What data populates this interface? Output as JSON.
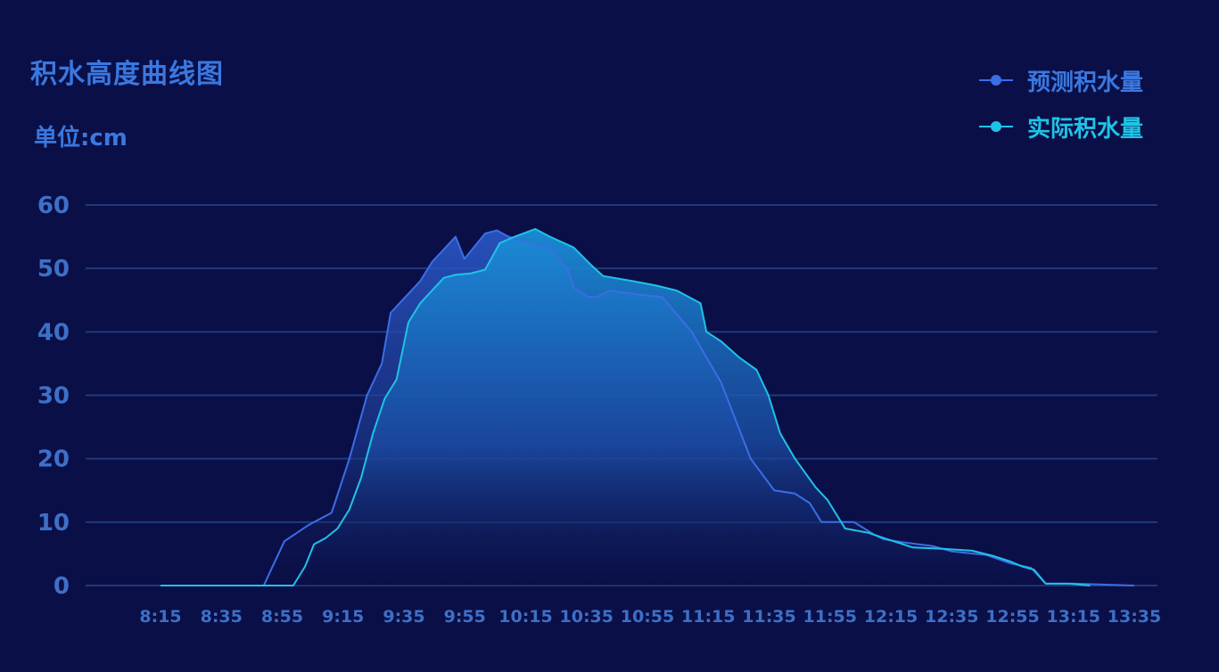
{
  "chart_data": {
    "type": "area",
    "title": "积水高度曲线图",
    "unit_label": "单位:cm",
    "categories": [
      "8:15",
      "8:35",
      "8:55",
      "9:15",
      "9:35",
      "9:55",
      "10:15",
      "10:35",
      "10:55",
      "11:15",
      "11:35",
      "11:55",
      "12:15",
      "12:35",
      "12:55",
      "13:15",
      "13:35"
    ],
    "ylim": [
      0,
      60
    ],
    "yticks": [
      0,
      10,
      20,
      30,
      40,
      50,
      60
    ],
    "xlim": [
      0,
      330
    ],
    "grid": true,
    "legend_position": "top-right",
    "series": [
      {
        "name": "预测积水量",
        "color": "#3a6ee6",
        "points": [
          [
            0,
            0
          ],
          [
            20,
            0
          ],
          [
            35,
            0
          ],
          [
            38,
            3
          ],
          [
            42,
            7
          ],
          [
            50,
            9.5
          ],
          [
            58,
            11.5
          ],
          [
            64,
            20
          ],
          [
            70,
            30
          ],
          [
            75,
            35
          ],
          [
            78,
            43
          ],
          [
            82,
            45
          ],
          [
            88,
            48
          ],
          [
            92,
            51
          ],
          [
            100,
            55
          ],
          [
            103,
            51.5
          ],
          [
            110,
            55.5
          ],
          [
            114,
            56
          ],
          [
            118,
            55
          ],
          [
            125,
            54
          ],
          [
            133,
            53
          ],
          [
            136,
            51
          ],
          [
            138,
            50
          ],
          [
            140,
            47
          ],
          [
            145,
            45.5
          ],
          [
            148,
            45.5
          ],
          [
            152,
            46.5
          ],
          [
            165,
            45.7
          ],
          [
            170,
            45.5
          ],
          [
            180,
            40
          ],
          [
            190,
            32
          ],
          [
            200,
            20
          ],
          [
            208,
            15
          ],
          [
            215,
            14.5
          ],
          [
            220,
            13
          ],
          [
            224,
            10
          ],
          [
            235,
            10
          ],
          [
            242,
            8
          ],
          [
            245,
            7.3
          ],
          [
            252,
            6.8
          ],
          [
            262,
            6.2
          ],
          [
            268,
            5.4
          ],
          [
            280,
            4.8
          ],
          [
            288,
            3.5
          ],
          [
            295,
            2.8
          ],
          [
            300,
            0.3
          ],
          [
            310,
            0.3
          ],
          [
            330,
            0
          ]
        ]
      },
      {
        "name": "实际积水量",
        "color": "#1fc3e6",
        "points": [
          [
            0,
            0
          ],
          [
            20,
            0
          ],
          [
            35,
            0
          ],
          [
            45,
            0
          ],
          [
            49,
            3
          ],
          [
            52,
            6.5
          ],
          [
            56,
            7.5
          ],
          [
            60,
            9
          ],
          [
            64,
            12
          ],
          [
            68,
            17
          ],
          [
            72,
            24
          ],
          [
            76,
            29.5
          ],
          [
            80,
            32.5
          ],
          [
            84,
            41.5
          ],
          [
            88,
            44.5
          ],
          [
            92,
            46.5
          ],
          [
            96,
            48.5
          ],
          [
            100,
            49
          ],
          [
            105,
            49.2
          ],
          [
            110,
            49.8
          ],
          [
            115,
            54
          ],
          [
            120,
            55
          ],
          [
            127,
            56.2
          ],
          [
            132,
            55
          ],
          [
            140,
            53.3
          ],
          [
            146,
            50.5
          ],
          [
            150,
            48.8
          ],
          [
            160,
            48
          ],
          [
            168,
            47.3
          ],
          [
            175,
            46.5
          ],
          [
            183,
            44.5
          ],
          [
            185,
            40
          ],
          [
            190,
            38.5
          ],
          [
            196,
            36
          ],
          [
            202,
            34
          ],
          [
            206,
            30
          ],
          [
            210,
            24
          ],
          [
            215,
            20
          ],
          [
            222,
            15.5
          ],
          [
            226,
            13.5
          ],
          [
            232,
            9
          ],
          [
            240,
            8.3
          ],
          [
            245,
            7.5
          ],
          [
            255,
            6
          ],
          [
            265,
            5.8
          ],
          [
            275,
            5.5
          ],
          [
            282,
            4.7
          ],
          [
            288,
            3.8
          ],
          [
            292,
            3
          ],
          [
            296,
            2.5
          ],
          [
            300,
            0.3
          ],
          [
            308,
            0.3
          ],
          [
            315,
            0
          ]
        ]
      }
    ]
  },
  "colors": {
    "background": "#0b0f47",
    "grid": "#1f3a7a",
    "text": "#3a78e0",
    "tick": "#3d70c7",
    "series_predicted": "#3a6ee6",
    "series_actual": "#1fc3e6"
  }
}
